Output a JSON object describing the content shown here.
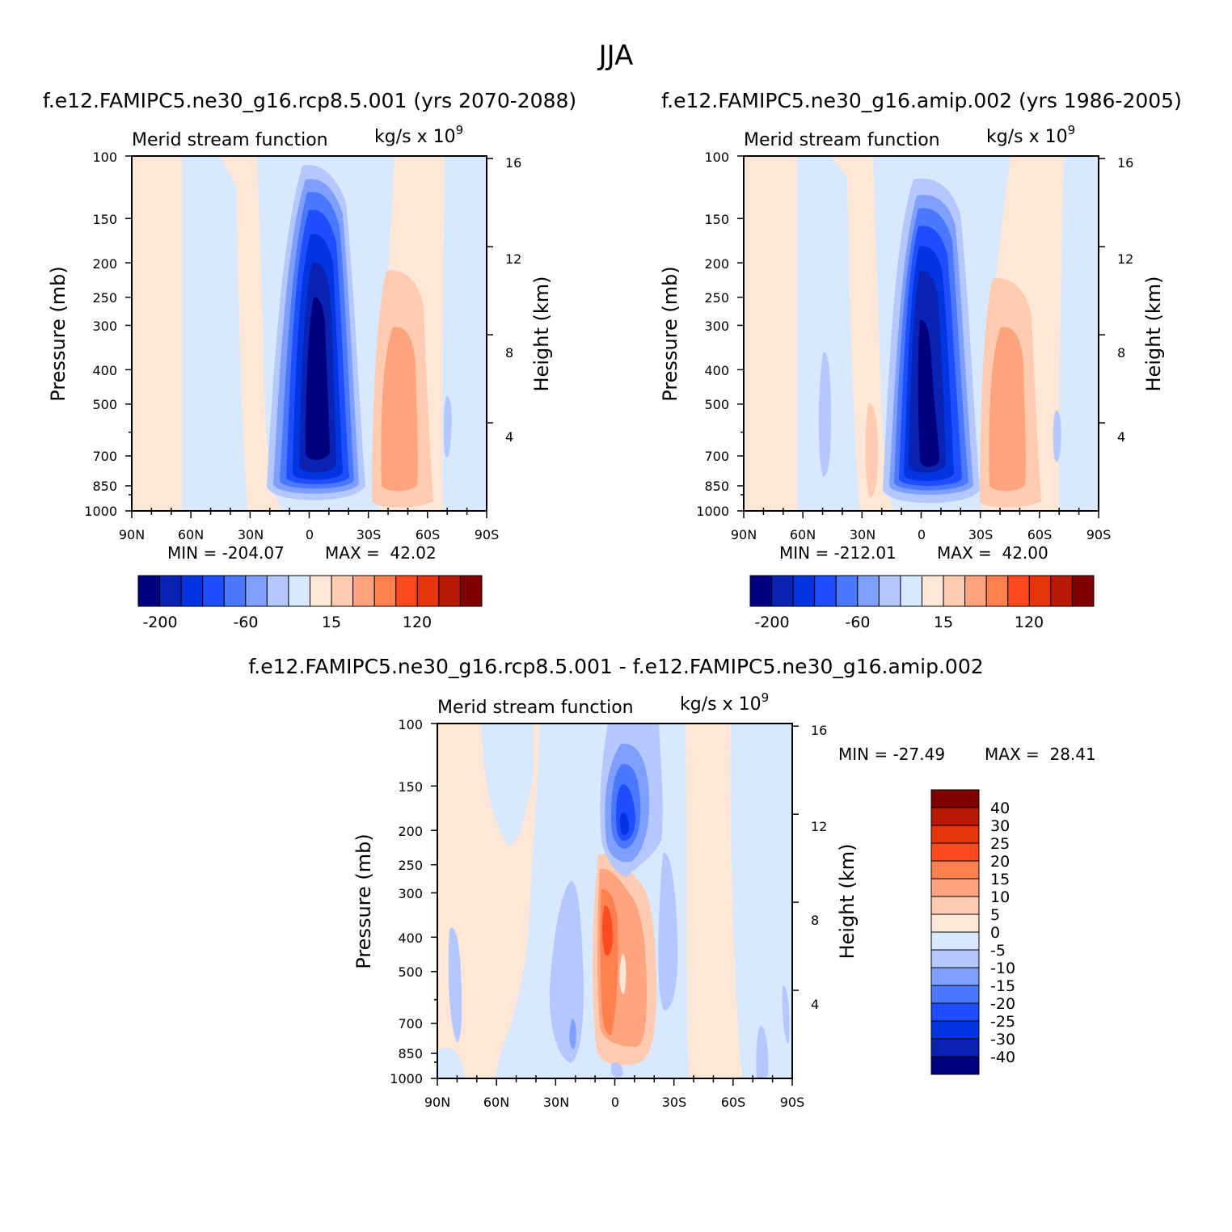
{
  "figure_title": "JJA",
  "colors": {
    "cmap_abs": [
      "#00007f",
      "#0a23b4",
      "#0035e0",
      "#1e4eff",
      "#4a78ff",
      "#7f9fff",
      "#b4c8ff",
      "#d8e8ff",
      "#ffe7d7",
      "#ffcbb1",
      "#ffa47e",
      "#ff7f4f",
      "#ff4b1f",
      "#e8340c",
      "#b81a04",
      "#7f0000"
    ],
    "cmap_diff": [
      "#00007f",
      "#0a23b4",
      "#0035e0",
      "#1e4eff",
      "#4a78ff",
      "#7f9fff",
      "#b4c8ff",
      "#d8e8ff",
      "#ffe7d7",
      "#ffcbb1",
      "#ffa47e",
      "#ff7f4f",
      "#ff4b1f",
      "#e8340c",
      "#b81a04",
      "#7f0000"
    ]
  },
  "chart_data": [
    {
      "type": "heatmap",
      "panel_title": "f.e12.FAMIPC5.ne30_g16.rcp8.5.001 (yrs 2070-2088)",
      "subtitle": "Merid stream function",
      "units": "kg/s x 10",
      "units_exp": "9",
      "ylabel": "Pressure (mb)",
      "ylabel2": "Height (km)",
      "xticks": [
        "90N",
        "60N",
        "30N",
        "0",
        "30S",
        "60S",
        "90S"
      ],
      "yticks": [
        "100",
        "150",
        "200",
        "250",
        "300",
        "400",
        "500",
        "700",
        "850",
        "1000"
      ],
      "y2ticks": [
        "16",
        "12",
        "8",
        "4"
      ],
      "min_label": "MIN = -204.07",
      "max_label": "MAX =  42.02",
      "min": -204.07,
      "max": 42.02,
      "colorbar_labels": [
        "-200",
        "-60",
        "15",
        "120"
      ],
      "x_range": [
        "90N",
        "90S"
      ],
      "y_range": [
        100,
        1000
      ],
      "y_scale": "log (pressure)",
      "contour_levels": [
        -200,
        -160,
        -120,
        -90,
        -60,
        -30,
        -15,
        0,
        15,
        30,
        60,
        90,
        120,
        160,
        200
      ],
      "features": [
        {
          "name": "southern-hemisphere-cell (negative)",
          "center_lat": 0,
          "center_p": 600,
          "min": -204.07
        },
        {
          "name": "secondary-cell (positive)",
          "center_lat": -45,
          "center_p": 500,
          "value": 42.02
        }
      ]
    },
    {
      "type": "heatmap",
      "panel_title": "f.e12.FAMIPC5.ne30_g16.amip.002 (yrs 1986-2005)",
      "subtitle": "Merid stream function",
      "units": "kg/s x 10",
      "units_exp": "9",
      "ylabel": "Pressure (mb)",
      "ylabel2": "Height (km)",
      "xticks": [
        "90N",
        "60N",
        "30N",
        "0",
        "30S",
        "60S",
        "90S"
      ],
      "yticks": [
        "100",
        "150",
        "200",
        "250",
        "300",
        "400",
        "500",
        "700",
        "850",
        "1000"
      ],
      "y2ticks": [
        "16",
        "12",
        "8",
        "4"
      ],
      "min_label": "MIN = -212.01",
      "max_label": "MAX =  42.00",
      "min": -212.01,
      "max": 42.0,
      "colorbar_labels": [
        "-200",
        "-60",
        "15",
        "120"
      ],
      "x_range": [
        "90N",
        "90S"
      ],
      "y_range": [
        100,
        1000
      ],
      "y_scale": "log (pressure)",
      "contour_levels": [
        -200,
        -160,
        -120,
        -90,
        -60,
        -30,
        -15,
        0,
        15,
        30,
        60,
        90,
        120,
        160,
        200
      ],
      "features": [
        {
          "name": "southern-hemisphere-cell (negative)",
          "center_lat": 2,
          "center_p": 450,
          "min": -212.01
        },
        {
          "name": "secondary-cell (positive)",
          "center_lat": -42,
          "center_p": 450,
          "value": 42.0
        }
      ]
    },
    {
      "type": "heatmap",
      "panel_title": "f.e12.FAMIPC5.ne30_g16.rcp8.5.001 - f.e12.FAMIPC5.ne30_g16.amip.002",
      "subtitle": "Merid stream function",
      "units": "kg/s x 10",
      "units_exp": "9",
      "ylabel": "Pressure (mb)",
      "ylabel2": "Height (km)",
      "xticks": [
        "90N",
        "60N",
        "30N",
        "0",
        "30S",
        "60S",
        "90S"
      ],
      "yticks": [
        "100",
        "150",
        "200",
        "250",
        "300",
        "400",
        "500",
        "700",
        "850",
        "1000"
      ],
      "y2ticks": [
        "16",
        "12",
        "8",
        "4"
      ],
      "min_label": "MIN = -27.49",
      "max_label": "MAX =  28.41",
      "min": -27.49,
      "max": 28.41,
      "colorbar_labels": [
        "40",
        "30",
        "25",
        "20",
        "15",
        "10",
        "5",
        "0",
        "-5",
        "-10",
        "-15",
        "-20",
        "-25",
        "-30",
        "-40"
      ],
      "x_range": [
        "90N",
        "90S"
      ],
      "y_range": [
        100,
        1000
      ],
      "y_scale": "log (pressure)",
      "contour_levels": [
        -40,
        -30,
        -25,
        -20,
        -15,
        -10,
        -5,
        0,
        5,
        10,
        15,
        20,
        25,
        30,
        40
      ],
      "features": [
        {
          "name": "upper-negative-anomaly",
          "center_lat": -3,
          "center_p": 190,
          "min": -27.49
        },
        {
          "name": "mid-positive-anomaly",
          "center_lat": 5,
          "center_p": 400,
          "max": 28.41
        }
      ]
    }
  ]
}
